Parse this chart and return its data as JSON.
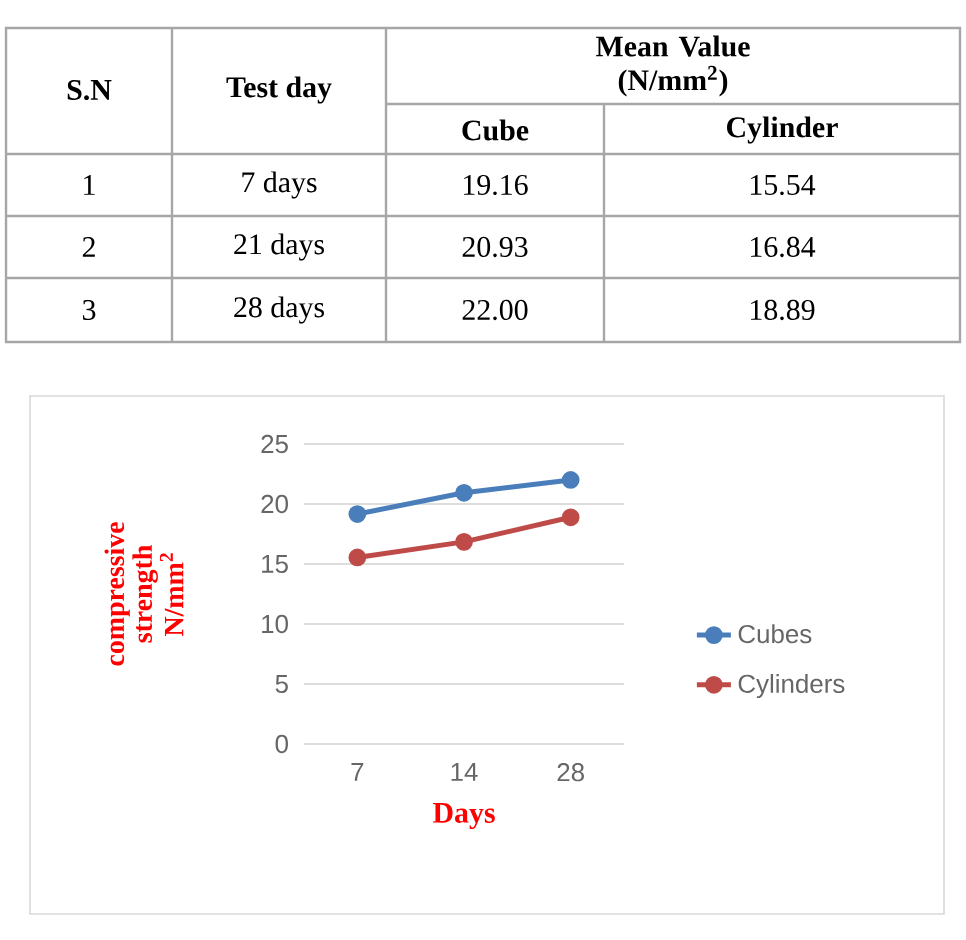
{
  "chart_data": {
    "type": "line",
    "xlabel": "Days",
    "ylabel": "compressive strength N/mm$^{2}$",
    "categories": [
      "7",
      "14",
      "28"
    ],
    "series": [
      {
        "name": "Cubes",
        "color": "#4a7ebb",
        "values": [
          19.16,
          20.93,
          22.0
        ]
      },
      {
        "name": "Cylinders",
        "color": "#be4b48",
        "values": [
          15.54,
          16.84,
          18.89
        ]
      }
    ],
    "ylim": [
      0,
      25
    ],
    "yticks": [
      0,
      5,
      10,
      15,
      20,
      25
    ],
    "grid": "y",
    "legend": "right",
    "marker": "circle",
    "line_style": "solid",
    "annotations": [
      "S.N",
      "Test day",
      "Mean Value (N/mm$^{2}$)",
      "Cube",
      "Cylinder",
      "1",
      "2",
      "3",
      "7 days",
      "21 days",
      "28 days",
      "19.16",
      "15.54",
      "20.93",
      "16.84",
      "22.00",
      "18.89"
    ]
  }
}
